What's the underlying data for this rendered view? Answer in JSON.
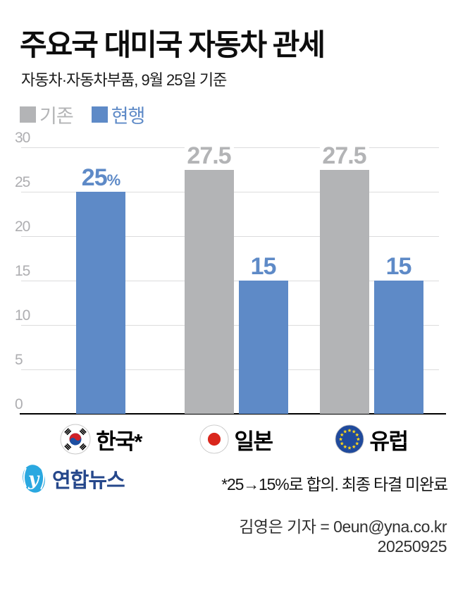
{
  "header": {
    "title": "주요국 대미국 자동차 관세",
    "subtitle": "자동차·자동차부품, 9월 25일 기준"
  },
  "legend": [
    {
      "label": "기존",
      "color": "#b3b4b6"
    },
    {
      "label": "현행",
      "color": "#5e8ac7"
    }
  ],
  "chart_data": {
    "type": "bar",
    "title": "주요국 대미국 자동차 관세",
    "unit": "%",
    "categories": [
      {
        "label": "한국*",
        "flag": "south-korea"
      },
      {
        "label": "일본",
        "flag": "japan"
      },
      {
        "label": "유럽",
        "flag": "eu"
      }
    ],
    "series": [
      {
        "name": "기존",
        "color": "#b3b4b6",
        "values": [
          null,
          27.5,
          27.5
        ],
        "labels": [
          "",
          "27.5",
          "27.5"
        ]
      },
      {
        "name": "현행",
        "color": "#5e8ac7",
        "values": [
          25,
          15,
          15
        ],
        "labels": [
          "25%",
          "15",
          "15"
        ]
      }
    ],
    "ylim": [
      0,
      30
    ],
    "yticks": [
      0,
      5,
      10,
      15,
      20,
      25,
      30
    ],
    "grid": true,
    "legend_position": "top-left"
  },
  "footer": {
    "logo_text": "연합뉴스",
    "footnote": "*25→15%로 합의. 최종 타결 미완료",
    "byline": "김영은 기자 = 0eun@yna.co.kr",
    "date": "20250925"
  },
  "colors": {
    "bar_blue": "#5e8ac7",
    "bar_gray": "#b3b4b6",
    "gridline": "#dcdcdd",
    "tick_label": "#aeaeb1",
    "logo_blue": "#2aa8e0",
    "logo_navy": "#25478b",
    "jp_red": "#d9261c",
    "eu_blue": "#204a9c",
    "star_yellow": "#ffd617",
    "kr_red": "#cf2027",
    "kr_blue": "#1d4fa1",
    "flag_border": "#c8c8c8"
  }
}
